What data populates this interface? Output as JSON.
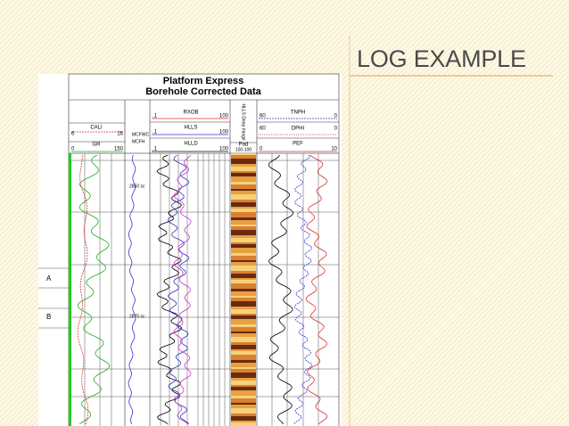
{
  "slide": {
    "title": "LOG EXAMPLE"
  },
  "log": {
    "title": "Platform Express",
    "subtitle": "Borehole Corrected Data",
    "track1": {
      "cali": "CALI",
      "cali_min": "6",
      "cali_max": "16",
      "gr": "GR",
      "gr_min": "0",
      "gr_max": "150"
    },
    "depth_track": {
      "mcfwc": "MCFWC",
      "mcfh": "MCFH"
    },
    "track2": {
      "rxob": "RXOB",
      "rxob_min": ".1",
      "rxob_max": "100",
      "hlls": "HLLS",
      "hlls_min": ".1",
      "hlls_max": "100",
      "hlld": "HLLD",
      "hlld_min": ".1",
      "hlld_max": "100"
    },
    "image_track": {
      "label": "HLLS Deep Image",
      "pad": "Pad",
      "scale": "100-100"
    },
    "track3": {
      "tnph": "TNPH",
      "tnph_min": "60",
      "tnph_max": "0",
      "dphi": "DPHI",
      "dphi_min": "60",
      "dphi_max": "0",
      "pef": "PEF",
      "pef_min": "0",
      "pef_max": "10"
    },
    "depths": [
      "2850 sc",
      "2875 sc"
    ],
    "zones": [
      "A",
      "B"
    ]
  }
}
